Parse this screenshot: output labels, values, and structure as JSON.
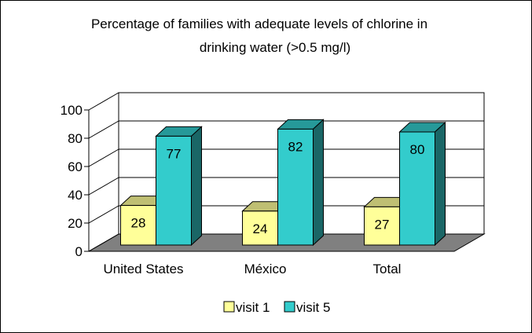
{
  "chart_data": {
    "type": "bar",
    "title_line1": "Percentage of families with adequate levels of chlorine in",
    "title_line2": "drinking water (>0.5 mg/l)",
    "categories": [
      "United States",
      "México",
      "Total"
    ],
    "series": [
      {
        "name": "visit 1",
        "values": [
          28,
          24,
          27
        ],
        "color": "#ffff99"
      },
      {
        "name": "visit 5",
        "values": [
          77,
          82,
          80
        ],
        "color": "#33cccc"
      }
    ],
    "ylim": [
      0,
      100
    ],
    "yticks": [
      0,
      20,
      40,
      60,
      80,
      100
    ],
    "grid": true,
    "legend_position": "bottom",
    "floor_color": "#808080"
  }
}
